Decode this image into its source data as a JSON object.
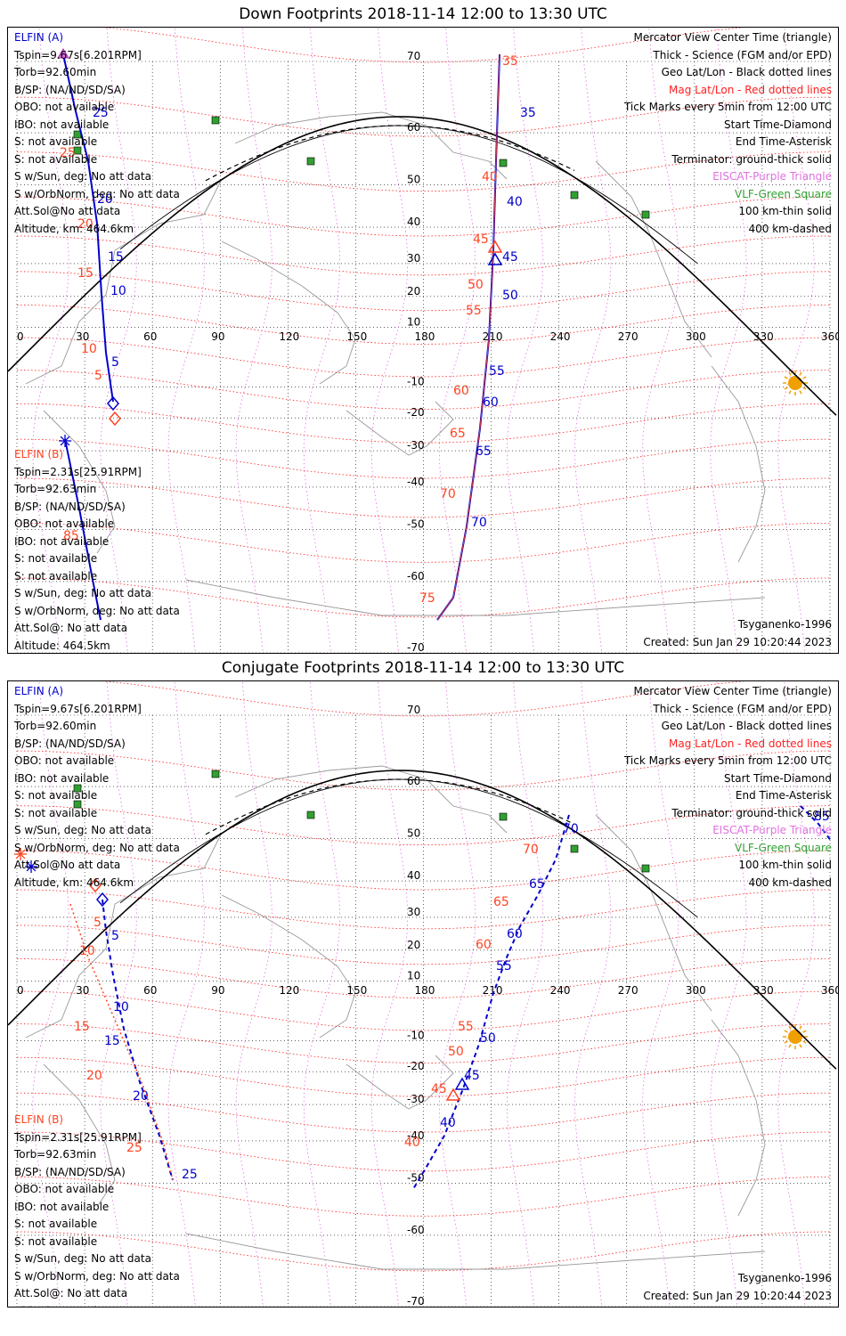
{
  "panels": [
    {
      "title": "Down Footprints 2018-11-14 12:00 to 13:30 UTC",
      "elfin_a": {
        "name": "ELFIN (A)",
        "lines": [
          "Tspin=9.67s[6.201RPM]",
          "Torb=92.60min",
          "B/SP: (NA/ND/SD/SA)",
          "OBO: not available",
          "IBO: not available",
          "S: not available",
          "S: not available",
          "S w/Sun, deg: No att data",
          "S w/OrbNorm, deg: No att data",
          "Att.Sol@No att data",
          "Altitude, km: 464.6km"
        ]
      },
      "elfin_b": {
        "name": "ELFIN (B)",
        "lines": [
          "Tspin=2.31s[25.91RPM]",
          "Torb=92.63min",
          "B/SP: (NA/ND/SD/SA)",
          "OBO: not available",
          "IBO: not available",
          "S: not available",
          "S: not available",
          "S w/Sun, deg: No att data",
          "S w/OrbNorm, deg: No att data",
          "Att.Sol@: No att data",
          "Altitude: 464.5km"
        ]
      },
      "legend": [
        {
          "text": "Mercator View Center Time (triangle)",
          "color": "#000000"
        },
        {
          "text": "Thick - Science (FGM and/or EPD)",
          "color": "#000000"
        },
        {
          "text": "Geo Lat/Lon - Black dotted lines",
          "color": "#000000"
        },
        {
          "text": "Mag Lat/Lon - Red dotted lines",
          "color": "#ff2020"
        },
        {
          "text": "Tick Marks every 5min from 12:00 UTC",
          "color": "#000000"
        },
        {
          "text": "Start Time-Diamond",
          "color": "#000000"
        },
        {
          "text": "End Time-Asterisk",
          "color": "#000000"
        },
        {
          "text": "Terminator: ground-thick solid",
          "color": "#000000"
        },
        {
          "text": "EISCAT-Purple Triangle",
          "color": "#e070e0"
        },
        {
          "text": "VLF-Green Square",
          "color": "#30a030"
        },
        {
          "text": "100 km-thin solid",
          "color": "#000000"
        },
        {
          "text": "400 km-dashed",
          "color": "#000000"
        }
      ],
      "model": "Tsyganenko-1996",
      "created": "Created: Sun Jan 29 10:20:44 2023",
      "a_ticks": [
        "25",
        "20",
        "15",
        "10",
        "5"
      ],
      "a_mag": [
        "25",
        "20",
        "15",
        "10",
        "5"
      ],
      "b_ticks": [
        "35",
        "40",
        "45",
        "50",
        "55",
        "60",
        "65",
        "70"
      ],
      "b_mag": [
        "35",
        "40",
        "45",
        "50",
        "55",
        "60",
        "65",
        "70",
        "75"
      ],
      "b_ticks_left": [
        "85"
      ]
    },
    {
      "title": "Conjugate Footprints 2018-11-14 12:00 to 13:30 UTC",
      "elfin_a": {
        "name": "ELFIN (A)",
        "lines": [
          "Tspin=9.67s[6.201RPM]",
          "Torb=92.60min",
          "B/SP: (NA/ND/SD/SA)",
          "OBO: not available",
          "IBO: not available",
          "S: not available",
          "S: not available",
          "S w/Sun, deg: No att data",
          "S w/OrbNorm, deg: No att data",
          "Att.Sol@No att data",
          "Altitude, km: 464.6km"
        ]
      },
      "elfin_b": {
        "name": "ELFIN (B)",
        "lines": [
          "Tspin=2.31s[25.91RPM]",
          "Torb=92.63min",
          "B/SP: (NA/ND/SD/SA)",
          "OBO: not available",
          "IBO: not available",
          "S: not available",
          "S: not available",
          "S w/Sun, deg: No att data",
          "S w/OrbNorm, deg: No att data",
          "Att.Sol@: No att data",
          "Altitude: 464.5km"
        ]
      },
      "legend": [
        {
          "text": "Mercator View Center Time (triangle)",
          "color": "#000000"
        },
        {
          "text": "Thick - Science (FGM and/or EPD)",
          "color": "#000000"
        },
        {
          "text": "Geo Lat/Lon - Black dotted lines",
          "color": "#000000"
        },
        {
          "text": "Mag Lat/Lon - Red dotted lines",
          "color": "#ff2020"
        },
        {
          "text": "Tick Marks every 5min from 12:00 UTC",
          "color": "#000000"
        },
        {
          "text": "Start Time-Diamond",
          "color": "#000000"
        },
        {
          "text": "End Time-Asterisk",
          "color": "#000000"
        },
        {
          "text": "Terminator: ground-thick solid",
          "color": "#000000"
        },
        {
          "text": "EISCAT-Purple Triangle",
          "color": "#e070e0"
        },
        {
          "text": "VLF-Green Square",
          "color": "#30a030"
        },
        {
          "text": "100 km-thin solid",
          "color": "#000000"
        },
        {
          "text": "400 km-dashed",
          "color": "#000000"
        }
      ],
      "model": "Tsyganenko-1996",
      "created": "Created: Sun Jan 29 10:20:44 2023",
      "a_ticks": [
        "5",
        "10",
        "15",
        "20",
        "25"
      ],
      "a_mag": [
        "5",
        "10",
        "15",
        "20",
        "25"
      ],
      "b_ticks": [
        "70",
        "65",
        "60",
        "55",
        "50",
        "45",
        "40"
      ],
      "b_mag": [
        "70",
        "65",
        "60",
        "55",
        "50",
        "45",
        "40"
      ],
      "right_tick": "85"
    }
  ],
  "map": {
    "lon_labels": [
      "0",
      "30",
      "60",
      "90",
      "120",
      "150",
      "180",
      "210",
      "240",
      "270",
      "300",
      "330",
      "360"
    ],
    "lat_labels": [
      "70",
      "60",
      "50",
      "40",
      "30",
      "20",
      "10",
      "-10",
      "-20",
      "-30",
      "-40",
      "-50",
      "-60",
      "-70"
    ],
    "colors": {
      "elfin_a": "#0000cc",
      "elfin_b": "#ff4422",
      "mag": "#ff2020",
      "geo": "#000000",
      "vlf": "#30a030",
      "eiscat": "#e070e0",
      "sun": "#f0a000",
      "coast": "#999999"
    }
  }
}
